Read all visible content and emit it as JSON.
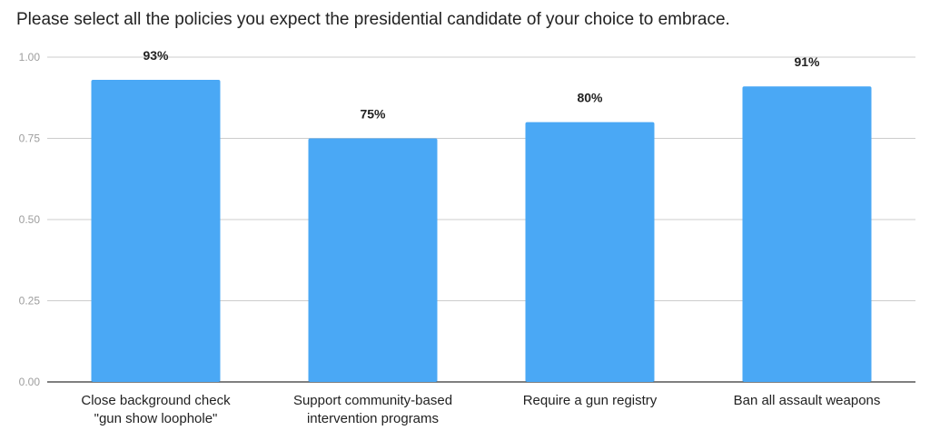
{
  "chart_data": {
    "type": "bar",
    "title": "Please select all the policies you expect the presidential candidate of your choice to embrace.",
    "categories": [
      [
        "Close background check",
        "\"gun show loophole\""
      ],
      [
        "Support community-based",
        "intervention programs"
      ],
      [
        "Require a gun registry"
      ],
      [
        "Ban all assault weapons"
      ]
    ],
    "values": [
      0.93,
      0.75,
      0.8,
      0.91
    ],
    "data_labels": [
      "93%",
      "75%",
      "80%",
      "91%"
    ],
    "yticks": [
      "0.00",
      "0.25",
      "0.50",
      "0.75",
      "1.00"
    ],
    "ylim": [
      0,
      1
    ],
    "grid": true,
    "colors": {
      "bar": "#4aa8f5",
      "grid": "#cccccc",
      "axis": "#333333"
    }
  }
}
